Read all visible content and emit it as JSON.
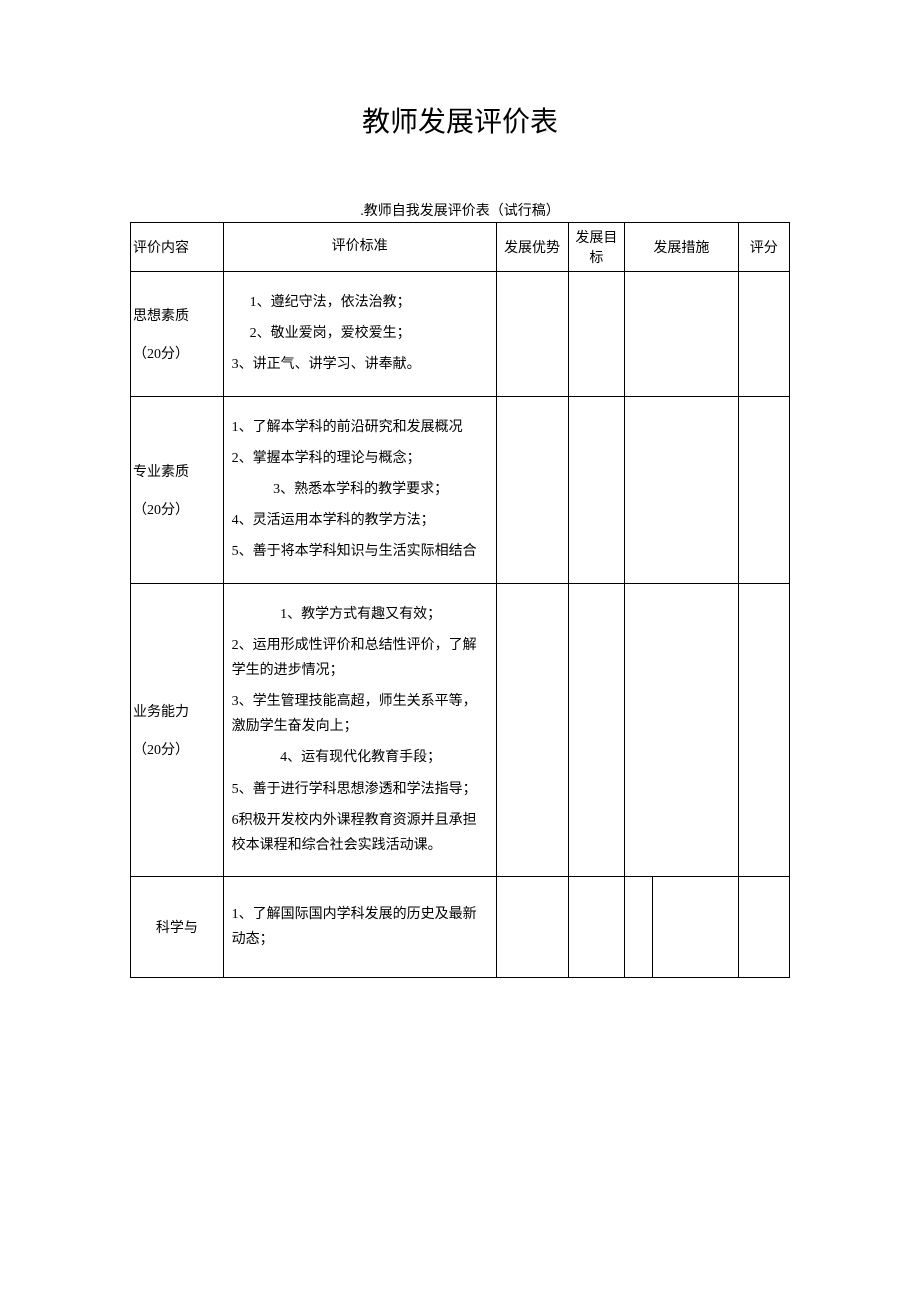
{
  "title": "教师发展评价表",
  "subtitle": ".教师自我发展评价表（试行稿）",
  "headers": {
    "category": "评价内容",
    "criteria": "评价标准",
    "advantage": "发展优势",
    "goal": "发展目标",
    "measure": "发展措施",
    "score": "评分"
  },
  "sections": {
    "s1": {
      "label": "思想素质",
      "points": "（20分）",
      "c1": "1、遵纪守法，依法治教；",
      "c2": "2、敬业爱岗，爱校爱生；",
      "c3": "3、讲正气、讲学习、讲奉献。"
    },
    "s2": {
      "label": "专业素质",
      "points": "（20分）",
      "c1": "1、了解本学科的前沿研究和发展概况",
      "c2": "2、掌握本学科的理论与概念；",
      "c3": "3、熟悉本学科的教学要求；",
      "c4": "4、灵活运用本学科的教学方法；",
      "c5": "5、善于将本学科知识与生活实际相结合"
    },
    "s3": {
      "label": "业务能力",
      "points": "（20分）",
      "c1": "1、教学方式有趣又有效；",
      "c2": "2、运用形成性评价和总结性评价，了解学生的进步情况；",
      "c3": "3、学生管理技能高超，师生关系平等，激励学生奋发向上；",
      "c4": "4、运有现代化教育手段；",
      "c5": "5、善于进行学科思想渗透和学法指导；",
      "c6": "6积极开发校内外课程教育资源并且承担校本课程和综合社会实践活动课。"
    },
    "s4": {
      "label": "科学与",
      "c1": "1、了解国际国内学科发展的历史及最新动态；"
    }
  }
}
